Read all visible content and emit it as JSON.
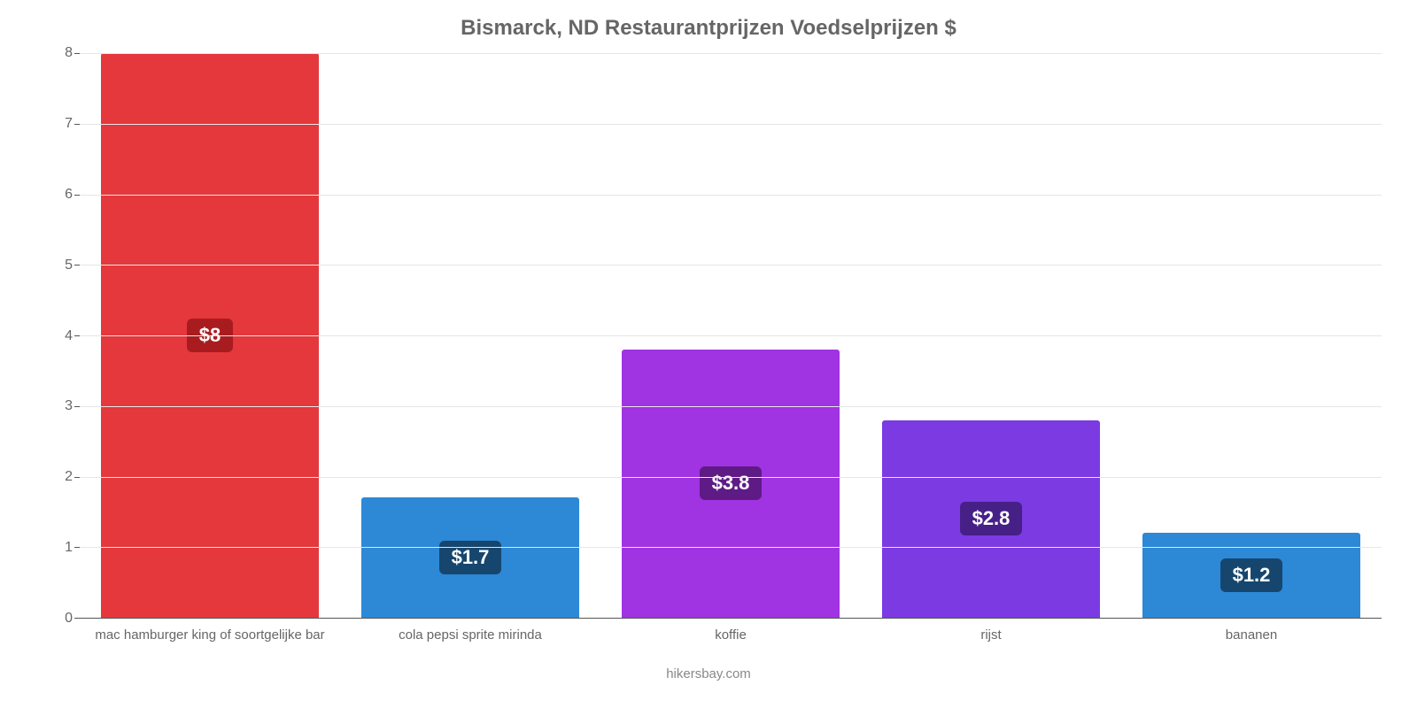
{
  "chart": {
    "type": "bar",
    "title": "Bismarck, ND Restaurantprijzen Voedselprijzen $",
    "title_color": "#666666",
    "title_fontsize": 24,
    "categories": [
      "mac hamburger king of soortgelijke bar",
      "cola pepsi sprite mirinda",
      "koffie",
      "rijst",
      "bananen"
    ],
    "values": [
      8,
      1.7,
      3.8,
      2.8,
      1.2
    ],
    "value_labels": [
      "$8",
      "$1.7",
      "$3.8",
      "$2.8",
      "$1.2"
    ],
    "bar_colors": [
      "#e4383c",
      "#2d88d6",
      "#a033e2",
      "#7b3ae2",
      "#2d88d6"
    ],
    "label_bg_colors": [
      "#a81c1f",
      "#16466e",
      "#5e1b86",
      "#462086",
      "#16466e"
    ],
    "label_fontsize": 22,
    "label_text_color": "#ffffff",
    "ylim": [
      0,
      8
    ],
    "yticks": [
      0,
      1,
      2,
      3,
      4,
      5,
      6,
      7,
      8
    ],
    "grid_color": "#e6e6e6",
    "axis_line_color": "#555555",
    "axis_label_color": "#666666",
    "axis_label_fontsize": 16,
    "xlabel_fontsize": 15,
    "background_color": "#ffffff",
    "bar_width_ratio": 0.84,
    "attribution": "hikersbay.com",
    "attribution_color": "#888888"
  }
}
